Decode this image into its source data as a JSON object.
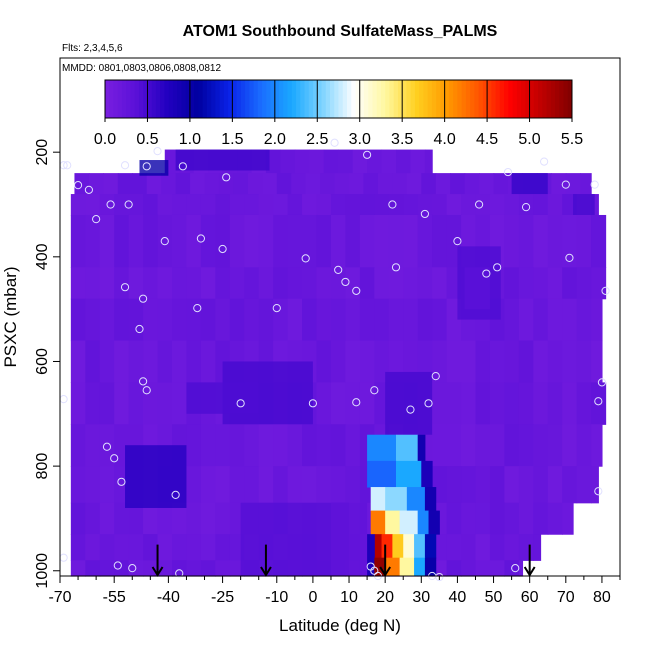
{
  "chart_data": {
    "type": "heatmap",
    "title": "ATOM1 Southbound SulfateMass_PALMS",
    "flights_note": "Flts: 2,3,4,5,6",
    "dates_note": "MMDD: 0801,0803,0806,0808,0812",
    "xlabel": "Latitude (deg N)",
    "ylabel": "PSXC (mbar)",
    "xlim": [
      -70,
      85
    ],
    "ylim": [
      1010,
      20
    ],
    "x_ticks": [
      -70,
      -55,
      -40,
      -25,
      -10,
      0,
      10,
      20,
      30,
      40,
      50,
      60,
      70,
      80
    ],
    "x_minor_ticks": [
      -65,
      -60,
      -50,
      -45,
      -35,
      -30,
      -20,
      -15,
      -5,
      5,
      15,
      25,
      35,
      45,
      55,
      65,
      75,
      85
    ],
    "y_ticks": [
      200,
      400,
      600,
      800,
      1000
    ],
    "colorbar": {
      "min": 0.0,
      "max": 5.5,
      "ticks": [
        0.0,
        0.5,
        1.0,
        1.5,
        2.0,
        2.5,
        3.0,
        3.5,
        4.0,
        4.5,
        5.0,
        5.5
      ],
      "tick_labels": [
        "0.0",
        "0.5",
        "1.0",
        "1.5",
        "2.0",
        "2.5",
        "3.0",
        "3.5",
        "4.0",
        "4.5",
        "5.0",
        "5.5"
      ],
      "colors": [
        "#7a1fe0",
        "#5a10d8",
        "#2200c0",
        "#0000a0",
        "#0a22e8",
        "#1a6cff",
        "#1aa8ff",
        "#80d4ff",
        "#ffffff",
        "#fff8a0",
        "#ffd020",
        "#ff9900",
        "#ff5500",
        "#ff0000",
        "#c00000",
        "#800000"
      ]
    },
    "coverage": [
      {
        "lat": [
          -41,
          33
        ],
        "p": [
          195,
          240
        ]
      },
      {
        "lat": [
          -66,
          77
        ],
        "p": [
          240,
          280
        ]
      },
      {
        "lat": [
          -67,
          79
        ],
        "p": [
          280,
          320
        ]
      },
      {
        "lat": [
          -67,
          81
        ],
        "p": [
          320,
          420
        ]
      },
      {
        "lat": [
          -67,
          81
        ],
        "p": [
          420,
          480
        ]
      },
      {
        "lat": [
          -67,
          80
        ],
        "p": [
          480,
          560
        ]
      },
      {
        "lat": [
          -67,
          80
        ],
        "p": [
          560,
          640
        ]
      },
      {
        "lat": [
          -67,
          81
        ],
        "p": [
          640,
          720
        ]
      },
      {
        "lat": [
          -67,
          80
        ],
        "p": [
          720,
          800
        ]
      },
      {
        "lat": [
          -67,
          79
        ],
        "p": [
          800,
          870
        ]
      },
      {
        "lat": [
          -67,
          72
        ],
        "p": [
          870,
          930
        ]
      },
      {
        "lat": [
          -67,
          63
        ],
        "p": [
          930,
          980
        ]
      },
      {
        "lat": [
          -67,
          58
        ],
        "p": [
          980,
          1010
        ]
      }
    ],
    "features": [
      {
        "lat": [
          -38,
          -12
        ],
        "p": [
          195,
          235
        ],
        "value": 0.55
      },
      {
        "lat": [
          -48,
          -40
        ],
        "p": [
          215,
          245
        ],
        "value": 1.0
      },
      {
        "lat": [
          -25,
          0
        ],
        "p": [
          600,
          720
        ],
        "value": 0.5
      },
      {
        "lat": [
          -35,
          -15
        ],
        "p": [
          640,
          700
        ],
        "value": 0.45
      },
      {
        "lat": [
          40,
          52
        ],
        "p": [
          380,
          520
        ],
        "value": 0.45
      },
      {
        "lat": [
          42,
          49
        ],
        "p": [
          420,
          500
        ],
        "value": 0.35
      },
      {
        "lat": [
          -20,
          10
        ],
        "p": [
          870,
          1010
        ],
        "value": 0.4
      },
      {
        "lat": [
          5,
          15
        ],
        "p": [
          870,
          1010
        ],
        "value": 0.3
      },
      {
        "lat": [
          20,
          33
        ],
        "p": [
          620,
          740
        ],
        "value": 0.5
      },
      {
        "lat": [
          55,
          65
        ],
        "p": [
          240,
          280
        ],
        "value": 0.6
      },
      {
        "lat": [
          72,
          78
        ],
        "p": [
          280,
          320
        ],
        "value": 0.5
      },
      {
        "lat": [
          -52,
          -35
        ],
        "p": [
          760,
          880
        ],
        "value": 0.7
      }
    ],
    "plume": [
      {
        "lat": [
          15,
          23
        ],
        "p": [
          740,
          790
        ],
        "value": 2.0
      },
      {
        "lat": [
          23,
          29
        ],
        "p": [
          740,
          790
        ],
        "value": 2.4
      },
      {
        "lat": [
          29,
          31
        ],
        "p": [
          740,
          790
        ],
        "value": 0.9
      },
      {
        "lat": [
          15,
          23
        ],
        "p": [
          790,
          840
        ],
        "value": 1.8
      },
      {
        "lat": [
          23,
          30
        ],
        "p": [
          790,
          840
        ],
        "value": 2.2
      },
      {
        "lat": [
          30,
          33
        ],
        "p": [
          790,
          840
        ],
        "value": 0.8
      },
      {
        "lat": [
          16,
          20
        ],
        "p": [
          840,
          885
        ],
        "value": 2.8
      },
      {
        "lat": [
          20,
          26
        ],
        "p": [
          840,
          885
        ],
        "value": 2.6
      },
      {
        "lat": [
          26,
          31
        ],
        "p": [
          840,
          885
        ],
        "value": 2.0
      },
      {
        "lat": [
          31,
          34
        ],
        "p": [
          840,
          885
        ],
        "value": 0.9
      },
      {
        "lat": [
          16,
          20
        ],
        "p": [
          885,
          930
        ],
        "value": 4.2
      },
      {
        "lat": [
          20,
          24
        ],
        "p": [
          885,
          930
        ],
        "value": 3.3
      },
      {
        "lat": [
          24,
          29
        ],
        "p": [
          885,
          930
        ],
        "value": 2.8
      },
      {
        "lat": [
          29,
          32
        ],
        "p": [
          885,
          930
        ],
        "value": 2.0
      },
      {
        "lat": [
          32,
          35
        ],
        "p": [
          885,
          930
        ],
        "value": 0.9
      },
      {
        "lat": [
          17,
          19
        ],
        "p": [
          930,
          975
        ],
        "value": 5.2
      },
      {
        "lat": [
          19,
          22
        ],
        "p": [
          930,
          975
        ],
        "value": 4.6
      },
      {
        "lat": [
          22,
          25
        ],
        "p": [
          930,
          975
        ],
        "value": 3.7
      },
      {
        "lat": [
          25,
          28
        ],
        "p": [
          930,
          975
        ],
        "value": 3.1
      },
      {
        "lat": [
          28,
          31
        ],
        "p": [
          930,
          975
        ],
        "value": 2.4
      },
      {
        "lat": [
          31,
          34
        ],
        "p": [
          930,
          975
        ],
        "value": 1.2
      },
      {
        "lat": [
          15,
          17
        ],
        "p": [
          930,
          1010
        ],
        "value": 0.8
      },
      {
        "lat": [
          17,
          20
        ],
        "p": [
          975,
          1010
        ],
        "value": 5.4
      },
      {
        "lat": [
          20,
          24
        ],
        "p": [
          975,
          1010
        ],
        "value": 4.2
      },
      {
        "lat": [
          24,
          28
        ],
        "p": [
          975,
          1010
        ],
        "value": 3.3
      },
      {
        "lat": [
          28,
          31
        ],
        "p": [
          975,
          1010
        ],
        "value": 2.2
      },
      {
        "lat": [
          31,
          34
        ],
        "p": [
          975,
          1010
        ],
        "value": 1.0
      }
    ],
    "samples": [
      [
        -43,
        198
      ],
      [
        -69,
        225
      ],
      [
        -68,
        225
      ],
      [
        -52,
        225
      ],
      [
        -46,
        227
      ],
      [
        -36,
        227
      ],
      [
        6,
        182
      ],
      [
        15,
        205
      ],
      [
        -24,
        248
      ],
      [
        -65,
        263
      ],
      [
        -62,
        272
      ],
      [
        -56,
        300
      ],
      [
        -51,
        300
      ],
      [
        -60,
        328
      ],
      [
        -31,
        365
      ],
      [
        -41,
        370
      ],
      [
        -25,
        385
      ],
      [
        -2,
        403
      ],
      [
        7,
        425
      ],
      [
        9,
        448
      ],
      [
        12,
        465
      ],
      [
        22,
        300
      ],
      [
        31,
        318
      ],
      [
        40,
        370
      ],
      [
        46,
        300
      ],
      [
        48,
        432
      ],
      [
        51,
        420
      ],
      [
        59,
        305
      ],
      [
        54,
        238
      ],
      [
        64,
        218
      ],
      [
        70,
        262
      ],
      [
        71,
        402
      ],
      [
        78,
        262
      ],
      [
        81,
        465
      ],
      [
        -52,
        458
      ],
      [
        -47,
        480
      ],
      [
        -48,
        538
      ],
      [
        -32,
        498
      ],
      [
        -10,
        498
      ],
      [
        23,
        420
      ],
      [
        -47,
        638
      ],
      [
        -46,
        655
      ],
      [
        -20,
        680
      ],
      [
        0,
        680
      ],
      [
        12,
        678
      ],
      [
        17,
        655
      ],
      [
        27,
        692
      ],
      [
        32,
        680
      ],
      [
        34,
        628
      ],
      [
        -69,
        672
      ],
      [
        -57,
        763
      ],
      [
        -55,
        785
      ],
      [
        -53,
        830
      ],
      [
        -38,
        855
      ],
      [
        -69,
        975
      ],
      [
        -54,
        990
      ],
      [
        -50,
        995
      ],
      [
        -37,
        1005
      ],
      [
        16,
        992
      ],
      [
        17,
        1000
      ],
      [
        56,
        995
      ],
      [
        80,
        640
      ],
      [
        79,
        676
      ],
      [
        79,
        848
      ],
      [
        33,
        1010
      ],
      [
        18,
        1010
      ],
      [
        35,
        1012
      ]
    ],
    "arrows": [
      {
        "lat": -43,
        "p_top": 950,
        "p_bottom": 1010
      },
      {
        "lat": -13,
        "p_top": 950,
        "p_bottom": 1010
      },
      {
        "lat": 20,
        "p_top": 950,
        "p_bottom": 1010
      },
      {
        "lat": 60,
        "p_top": 950,
        "p_bottom": 1010
      }
    ]
  }
}
